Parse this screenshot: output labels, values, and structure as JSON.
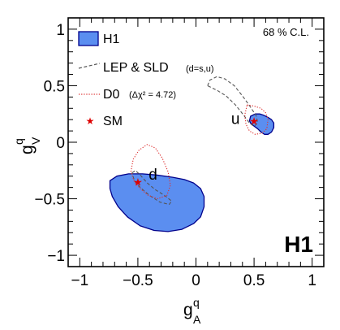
{
  "chart_data": {
    "type": "scatter",
    "title": "",
    "xlabel": "g",
    "xlabel_sup": "q",
    "xlabel_sub": "A",
    "ylabel": "g",
    "ylabel_sup": "q",
    "ylabel_sub": "V",
    "xlim": [
      -1.1,
      1.1
    ],
    "ylim": [
      -1.1,
      1.1
    ],
    "x_ticks": [
      "−1",
      "−0.5",
      "0",
      "0.5",
      "1"
    ],
    "x_tick_values": [
      -1,
      -0.5,
      0,
      0.5,
      1
    ],
    "y_ticks": [
      "−1",
      "−0.5",
      "0",
      "0.5",
      "1"
    ],
    "y_tick_values": [
      -1,
      -0.5,
      0,
      0.5,
      1
    ],
    "grid": false,
    "legend_placement": "top-left",
    "annotation_cl": "68 % C.L.",
    "watermark": "H1",
    "colors": {
      "h1_fill": "#5b8ef0",
      "h1_stroke": "#00008b",
      "lep": "#555555",
      "d0": "#dd3333",
      "sm": "#dd0000"
    },
    "series": [
      {
        "name": "H1",
        "style": "filled-contour",
        "contours": [
          {
            "quark": "u",
            "points": [
              [
                0.46,
                0.19
              ],
              [
                0.47,
                0.23
              ],
              [
                0.51,
                0.25
              ],
              [
                0.55,
                0.25
              ],
              [
                0.58,
                0.24
              ],
              [
                0.62,
                0.22
              ],
              [
                0.65,
                0.2
              ],
              [
                0.67,
                0.17
              ],
              [
                0.67,
                0.13
              ],
              [
                0.65,
                0.09
              ],
              [
                0.62,
                0.07
              ],
              [
                0.59,
                0.07
              ],
              [
                0.56,
                0.09
              ],
              [
                0.53,
                0.12
              ],
              [
                0.49,
                0.15
              ],
              [
                0.47,
                0.17
              ]
            ]
          },
          {
            "quark": "d",
            "points": [
              [
                -0.74,
                -0.34
              ],
              [
                -0.68,
                -0.3
              ],
              [
                -0.58,
                -0.28
              ],
              [
                -0.46,
                -0.28
              ],
              [
                -0.34,
                -0.29
              ],
              [
                -0.2,
                -0.31
              ],
              [
                -0.1,
                -0.33
              ],
              [
                -0.02,
                -0.36
              ],
              [
                0.04,
                -0.41
              ],
              [
                0.07,
                -0.48
              ],
              [
                0.07,
                -0.57
              ],
              [
                0.04,
                -0.66
              ],
              [
                -0.02,
                -0.72
              ],
              [
                -0.12,
                -0.77
              ],
              [
                -0.24,
                -0.79
              ],
              [
                -0.36,
                -0.78
              ],
              [
                -0.48,
                -0.74
              ],
              [
                -0.59,
                -0.66
              ],
              [
                -0.67,
                -0.57
              ],
              [
                -0.72,
                -0.48
              ],
              [
                -0.74,
                -0.41
              ]
            ]
          }
        ]
      },
      {
        "name": "LEP & SLD",
        "note": "(d=s,u)",
        "style": "dashed-contour",
        "contours": [
          {
            "quark": "u",
            "points": [
              [
                0.1,
                0.5
              ],
              [
                0.12,
                0.55
              ],
              [
                0.18,
                0.58
              ],
              [
                0.25,
                0.56
              ],
              [
                0.33,
                0.5
              ],
              [
                0.4,
                0.41
              ],
              [
                0.47,
                0.31
              ],
              [
                0.52,
                0.23
              ],
              [
                0.53,
                0.17
              ],
              [
                0.5,
                0.14
              ],
              [
                0.46,
                0.17
              ],
              [
                0.41,
                0.24
              ],
              [
                0.34,
                0.33
              ],
              [
                0.26,
                0.41
              ],
              [
                0.18,
                0.46
              ]
            ]
          },
          {
            "quark": "d",
            "points": [
              [
                -0.55,
                -0.27
              ],
              [
                -0.52,
                -0.25
              ],
              [
                -0.48,
                -0.29
              ],
              [
                -0.42,
                -0.36
              ],
              [
                -0.35,
                -0.42
              ],
              [
                -0.27,
                -0.47
              ],
              [
                -0.21,
                -0.52
              ],
              [
                -0.23,
                -0.55
              ],
              [
                -0.31,
                -0.53
              ],
              [
                -0.4,
                -0.47
              ],
              [
                -0.48,
                -0.4
              ],
              [
                -0.53,
                -0.34
              ]
            ]
          }
        ]
      },
      {
        "name": "D0",
        "note": "(Δχ² = 4.72)",
        "style": "dotted-contour",
        "contours": [
          {
            "quark": "u",
            "points": [
              [
                0.44,
                0.33
              ],
              [
                0.5,
                0.32
              ],
              [
                0.56,
                0.3
              ],
              [
                0.6,
                0.26
              ],
              [
                0.62,
                0.2
              ],
              [
                0.61,
                0.12
              ],
              [
                0.57,
                0.08
              ],
              [
                0.51,
                0.07
              ],
              [
                0.46,
                0.1
              ],
              [
                0.43,
                0.16
              ],
              [
                0.42,
                0.24
              ]
            ]
          },
          {
            "quark": "d",
            "points": [
              [
                -0.56,
                -0.26
              ],
              [
                -0.54,
                -0.15
              ],
              [
                -0.49,
                -0.07
              ],
              [
                -0.42,
                -0.02
              ],
              [
                -0.35,
                -0.05
              ],
              [
                -0.29,
                -0.14
              ],
              [
                -0.24,
                -0.26
              ],
              [
                -0.22,
                -0.38
              ],
              [
                -0.25,
                -0.47
              ],
              [
                -0.33,
                -0.5
              ],
              [
                -0.41,
                -0.47
              ],
              [
                -0.48,
                -0.41
              ],
              [
                -0.53,
                -0.35
              ]
            ]
          }
        ]
      },
      {
        "name": "SM",
        "style": "star-marker",
        "points": [
          {
            "quark": "u",
            "x": 0.5,
            "y": 0.19
          },
          {
            "quark": "d",
            "x": -0.5,
            "y": -0.35
          }
        ]
      }
    ],
    "annotations": [
      {
        "text": "u",
        "x": 0.34,
        "y": 0.16
      },
      {
        "text": "d",
        "x": -0.37,
        "y": -0.33
      }
    ]
  }
}
